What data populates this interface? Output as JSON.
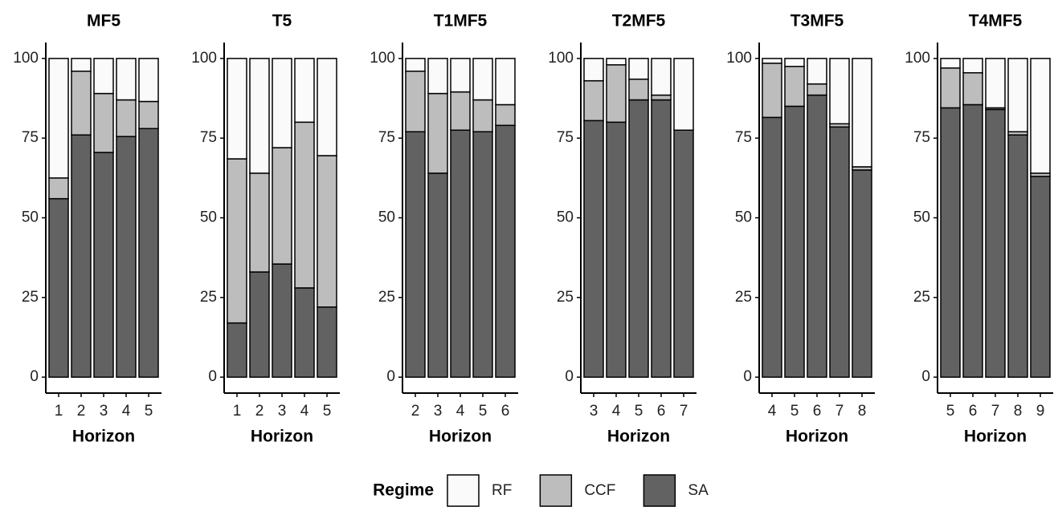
{
  "chart_data": [
    {
      "type": "bar",
      "title": "MF5",
      "x_label": "Horizon",
      "categories": [
        1,
        2,
        3,
        4,
        5
      ],
      "legend_title": "Regime",
      "series": [
        {
          "name": "SA",
          "color": "#626262",
          "values": [
            56,
            76,
            70.5,
            75.5,
            78
          ]
        },
        {
          "name": "CCF",
          "color": "#bdbdbd",
          "values": [
            6.5,
            20,
            18.5,
            11.5,
            8.5
          ]
        },
        {
          "name": "RF",
          "color": "#fafafa",
          "values": [
            37.5,
            4,
            11,
            13,
            13.5
          ]
        }
      ],
      "ylim": [
        -5,
        105
      ],
      "yticks": [
        0,
        25,
        50,
        75,
        100
      ]
    },
    {
      "type": "bar",
      "title": "T5",
      "x_label": "Horizon",
      "categories": [
        1,
        2,
        3,
        4,
        5
      ],
      "series": [
        {
          "color": "#626262",
          "values": [
            17,
            33,
            35.5,
            28,
            22
          ]
        },
        {
          "color": "#bdbdbd",
          "values": [
            51.5,
            31,
            36.5,
            52,
            47.5
          ]
        },
        {
          "color": "#fafafa",
          "values": [
            31.5,
            36,
            28,
            20,
            30.5
          ]
        }
      ],
      "ylim": [
        -5,
        105
      ],
      "yticks": [
        0,
        25,
        50,
        75,
        100
      ]
    },
    {
      "type": "bar",
      "title": "T1MF5",
      "x_label": "Horizon",
      "categories": [
        2,
        3,
        4,
        5,
        6
      ],
      "series": [
        {
          "color": "#626262",
          "values": [
            77,
            64,
            77.5,
            77,
            79
          ]
        },
        {
          "color": "#bdbdbd",
          "values": [
            19,
            25,
            12,
            10,
            6.5
          ]
        },
        {
          "color": "#fafafa",
          "values": [
            4,
            11,
            10.5,
            13,
            14.5
          ]
        }
      ],
      "ylim": [
        -5,
        105
      ],
      "yticks": [
        0,
        25,
        50,
        75,
        100
      ]
    },
    {
      "type": "bar",
      "title": "T2MF5",
      "x_label": "Horizon",
      "categories": [
        3,
        4,
        5,
        6,
        7
      ],
      "series": [
        {
          "color": "#626262",
          "values": [
            80.5,
            80,
            87,
            87,
            77.5
          ]
        },
        {
          "color": "#bdbdbd",
          "values": [
            12.5,
            18,
            6.5,
            1.5,
            0
          ]
        },
        {
          "color": "#fafafa",
          "values": [
            7,
            2,
            6.5,
            11.5,
            22.5
          ]
        }
      ],
      "ylim": [
        -5,
        105
      ],
      "yticks": [
        0,
        25,
        50,
        75,
        100
      ]
    },
    {
      "type": "bar",
      "title": "T3MF5",
      "x_label": "Horizon",
      "categories": [
        4,
        5,
        6,
        7,
        8
      ],
      "series": [
        {
          "color": "#626262",
          "values": [
            81.5,
            85,
            88.5,
            78.5,
            65
          ]
        },
        {
          "color": "#bdbdbd",
          "values": [
            17,
            12.5,
            3.5,
            1,
            1
          ]
        },
        {
          "color": "#fafafa",
          "values": [
            1.5,
            2.5,
            8,
            20.5,
            34
          ]
        }
      ],
      "ylim": [
        -5,
        105
      ],
      "yticks": [
        0,
        25,
        50,
        75,
        100
      ]
    },
    {
      "type": "bar",
      "title": "T4MF5",
      "x_label": "Horizon",
      "categories": [
        5,
        6,
        7,
        8,
        9
      ],
      "series": [
        {
          "color": "#626262",
          "values": [
            84.5,
            85.5,
            84,
            76,
            63
          ]
        },
        {
          "color": "#bdbdbd",
          "values": [
            12.5,
            10,
            0.5,
            1,
            1
          ]
        },
        {
          "color": "#fafafa",
          "values": [
            3,
            4.5,
            15.5,
            23,
            36
          ]
        }
      ],
      "ylim": [
        -5,
        105
      ],
      "yticks": [
        0,
        25,
        50,
        75,
        100
      ]
    }
  ]
}
